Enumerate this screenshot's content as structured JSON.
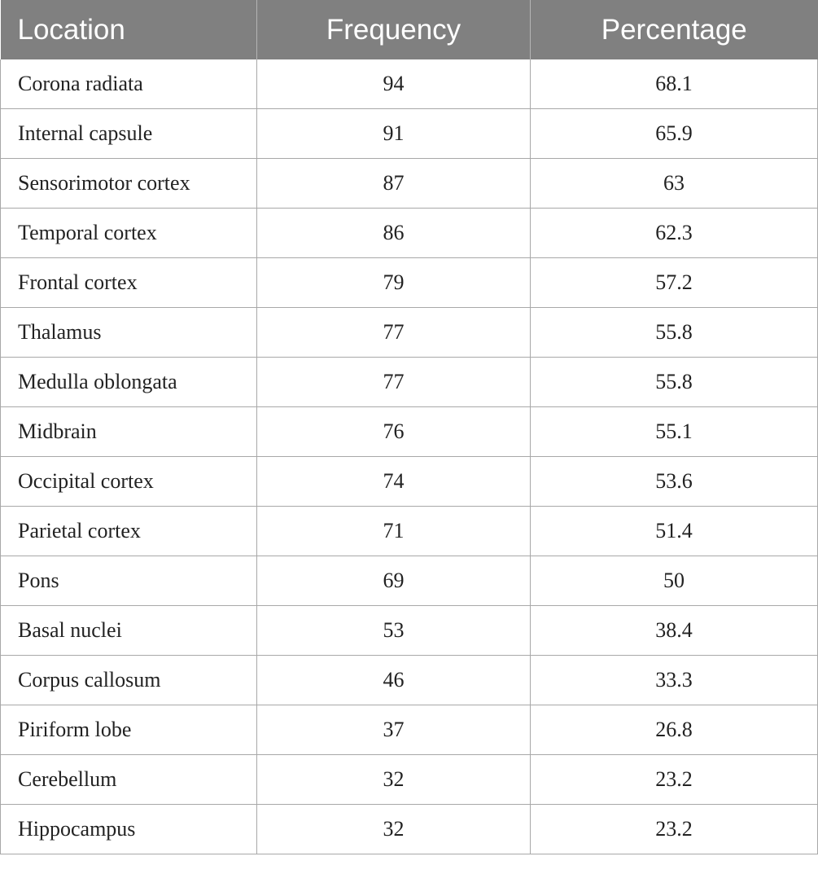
{
  "table": {
    "headers": [
      "Location",
      "Frequency",
      "Percentage"
    ],
    "rows": [
      [
        "Corona radiata",
        "94",
        "68.1"
      ],
      [
        "Internal capsule",
        "91",
        "65.9"
      ],
      [
        "Sensorimotor cortex",
        "87",
        "63"
      ],
      [
        "Temporal cortex",
        "86",
        "62.3"
      ],
      [
        "Frontal cortex",
        "79",
        "57.2"
      ],
      [
        "Thalamus",
        "77",
        "55.8"
      ],
      [
        "Medulla oblongata",
        "77",
        "55.8"
      ],
      [
        "Midbrain",
        "76",
        "55.1"
      ],
      [
        "Occipital cortex",
        "74",
        "53.6"
      ],
      [
        "Parietal cortex",
        "71",
        "51.4"
      ],
      [
        "Pons",
        "69",
        "50"
      ],
      [
        "Basal nuclei",
        "53",
        "38.4"
      ],
      [
        "Corpus callosum",
        "46",
        "33.3"
      ],
      [
        "Piriform lobe",
        "37",
        "26.8"
      ],
      [
        "Cerebellum",
        "32",
        "23.2"
      ],
      [
        "Hippocampus",
        "32",
        "23.2"
      ]
    ]
  },
  "colors": {
    "header_background": "#808080",
    "header_text": "#ffffff",
    "grid_lines": "#a8a8a8"
  }
}
